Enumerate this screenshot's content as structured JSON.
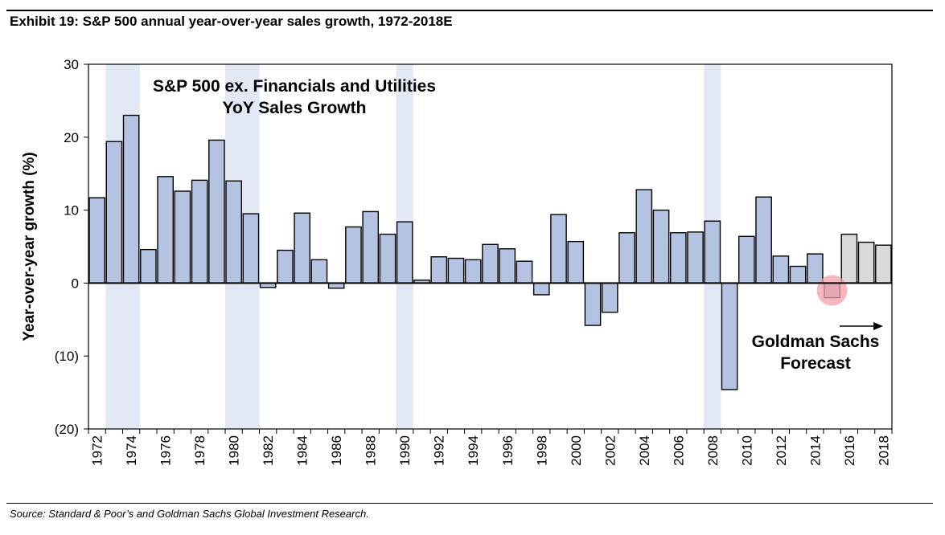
{
  "header": {
    "title": "Exhibit 19: S&P 500 annual year-over-year sales growth, 1972-2018E"
  },
  "footer": {
    "source": "Source: Standard & Poor’s and Goldman Sachs Global Investment Research."
  },
  "chart_data": {
    "type": "bar",
    "title": "",
    "xlabel": "",
    "ylabel": "Year-over-year growth (%)",
    "ylim": [
      -20,
      30
    ],
    "yticks": [
      30,
      20,
      10,
      0,
      -10,
      -20
    ],
    "ytick_labels": [
      "30",
      "20",
      "10",
      "0",
      "(10)",
      "(20)"
    ],
    "xtick_labels": [
      "1972",
      "1974",
      "1976",
      "1978",
      "1980",
      "1982",
      "1984",
      "1986",
      "1988",
      "1990",
      "1992",
      "1994",
      "1996",
      "1998",
      "2000",
      "2002",
      "2004",
      "2006",
      "2008",
      "2010",
      "2012",
      "2014",
      "2016",
      "2018"
    ],
    "grid": false,
    "categories": [
      "1972",
      "1973",
      "1974",
      "1975",
      "1976",
      "1977",
      "1978",
      "1979",
      "1980",
      "1981",
      "1982",
      "1983",
      "1984",
      "1985",
      "1986",
      "1987",
      "1988",
      "1989",
      "1990",
      "1991",
      "1992",
      "1993",
      "1994",
      "1995",
      "1996",
      "1997",
      "1998",
      "1999",
      "2000",
      "2001",
      "2002",
      "2003",
      "2004",
      "2005",
      "2006",
      "2007",
      "2008",
      "2009",
      "2010",
      "2011",
      "2012",
      "2013",
      "2014",
      "2015",
      "2016",
      "2017",
      "2018"
    ],
    "values": [
      11.7,
      19.4,
      23.0,
      4.6,
      14.6,
      12.6,
      14.1,
      19.6,
      14.0,
      9.5,
      -0.6,
      4.5,
      9.6,
      3.2,
      -0.7,
      7.7,
      9.8,
      6.7,
      8.4,
      0.4,
      3.6,
      3.4,
      3.2,
      5.3,
      4.7,
      3.0,
      -1.6,
      9.4,
      5.7,
      -5.8,
      -4.0,
      6.9,
      12.8,
      10.0,
      6.9,
      7.0,
      8.5,
      -14.6,
      6.4,
      11.8,
      3.7,
      2.3,
      4.0,
      -2.0,
      6.7,
      5.6,
      5.2
    ],
    "forecast_years": [
      "2016",
      "2017",
      "2018"
    ],
    "highlighted_year": "2015",
    "shaded_periods": [
      [
        "1973",
        "1974"
      ],
      [
        "1980",
        "1981"
      ],
      [
        "1990",
        "1990"
      ],
      [
        "2008",
        "2008"
      ]
    ],
    "colors": {
      "actual_fill": "#b4c3e1",
      "forecast_fill": "#d9d9d9",
      "shading": "#e2e8f4",
      "highlight": "#f2a0a8"
    },
    "annotations": {
      "series_label_line1": "S&P 500 ex. Financials and Utilities",
      "series_label_line2": "YoY Sales Growth",
      "forecast_label_line1": "Goldman Sachs",
      "forecast_label_line2": "Forecast"
    }
  }
}
